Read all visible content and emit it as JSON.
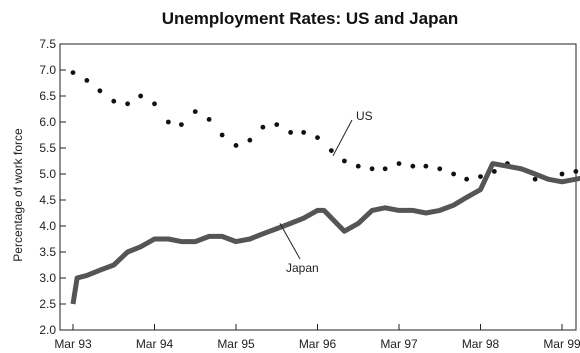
{
  "chart_data": {
    "type": "line",
    "title": "Unemployment Rates: US and Japan",
    "ylabel": "Percentage of work force",
    "xlabel": "",
    "ylim": [
      2.0,
      7.5
    ],
    "yticks": [
      "2.0",
      "2.5",
      "3.0",
      "3.5",
      "4.0",
      "4.5",
      "5.0",
      "5.5",
      "6.0",
      "6.5",
      "7.0",
      "7.5"
    ],
    "xticks": [
      "Mar 93",
      "Mar 94",
      "Mar 95",
      "Mar 96",
      "Mar 97",
      "Mar 98",
      "Mar 99"
    ],
    "grid": false,
    "series": [
      {
        "name": "US",
        "style": "dotted",
        "color": "#111111",
        "x": [
          0.0,
          0.17,
          0.33,
          0.5,
          0.67,
          0.83,
          1.0,
          1.17,
          1.33,
          1.5,
          1.67,
          1.83,
          2.0,
          2.17,
          2.33,
          2.5,
          2.67,
          2.83,
          3.0,
          3.17,
          3.33,
          3.5,
          3.67,
          3.83,
          4.0,
          4.17,
          4.33,
          4.5,
          4.67,
          4.83,
          5.0,
          5.17,
          5.33,
          5.5,
          5.67,
          5.83,
          6.0,
          6.17,
          6.33
        ],
        "values": [
          6.95,
          6.8,
          6.6,
          6.4,
          6.35,
          6.5,
          6.35,
          6.0,
          5.95,
          6.2,
          6.05,
          5.75,
          5.55,
          5.65,
          5.9,
          5.95,
          5.8,
          5.8,
          5.7,
          5.45,
          5.25,
          5.15,
          5.1,
          5.1,
          5.2,
          5.15,
          5.15,
          5.1,
          5.0,
          4.9,
          4.95,
          5.05,
          5.2,
          5.1,
          4.9,
          4.9,
          5.0,
          5.05,
          5.0
        ]
      },
      {
        "name": "Japan",
        "style": "thick",
        "color": "#555555",
        "x": [
          0.0,
          0.05,
          0.17,
          0.33,
          0.5,
          0.67,
          0.83,
          1.0,
          1.17,
          1.33,
          1.5,
          1.67,
          1.83,
          2.0,
          2.17,
          2.33,
          2.5,
          2.67,
          2.83,
          3.0,
          3.08,
          3.33,
          3.5,
          3.67,
          3.83,
          4.0,
          4.17,
          4.33,
          4.5,
          4.67,
          4.83,
          5.0,
          5.15,
          5.33,
          5.5,
          5.67,
          5.83,
          6.0,
          6.17,
          6.33
        ],
        "values": [
          2.5,
          3.0,
          3.05,
          3.15,
          3.25,
          3.5,
          3.6,
          3.75,
          3.75,
          3.7,
          3.7,
          3.8,
          3.8,
          3.7,
          3.75,
          3.85,
          3.95,
          4.05,
          4.15,
          4.3,
          4.3,
          3.9,
          4.05,
          4.3,
          4.35,
          4.3,
          4.3,
          4.25,
          4.3,
          4.4,
          4.55,
          4.7,
          5.2,
          5.15,
          5.1,
          5.0,
          4.9,
          4.85,
          4.9,
          4.95
        ]
      }
    ],
    "annotations": [
      {
        "text": "US",
        "series": "US"
      },
      {
        "text": "Japan",
        "series": "Japan"
      }
    ]
  }
}
